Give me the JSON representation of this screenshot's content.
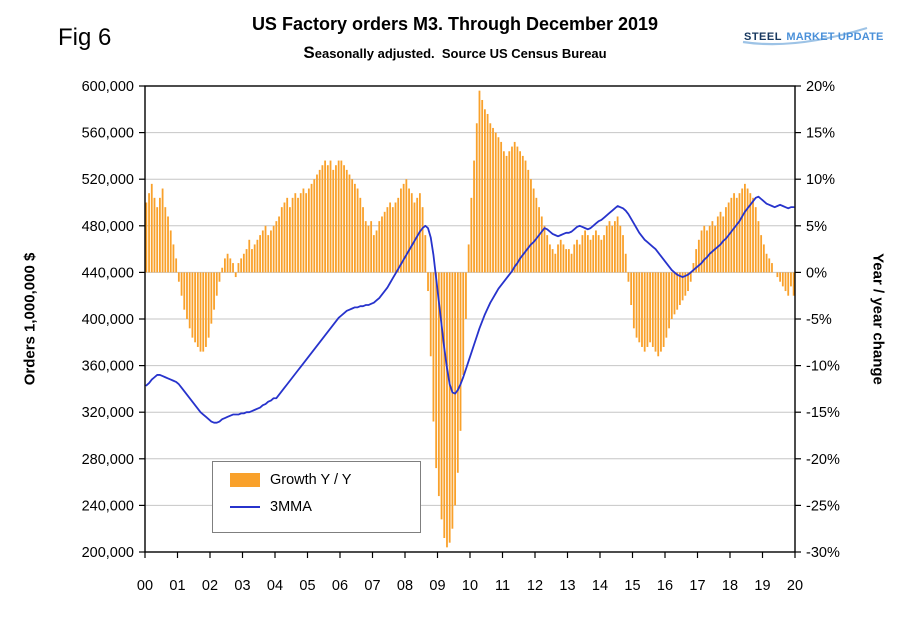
{
  "fig_label": "Fig 6",
  "header": {
    "title": "US Factory orders M3. Through December 2019",
    "subtitle": "Seasonally adjusted.  Source US Census Bureau"
  },
  "logo": {
    "part1": "STEEL",
    "part2": "MARKET UPDATE"
  },
  "axes": {
    "left_title": "Orders 1,000,000 $",
    "right_title": "Year / year change"
  },
  "legend": {
    "items": [
      {
        "label": "Growth Y / Y",
        "swatch": "bar"
      },
      {
        "label": "3MMA",
        "swatch": "line"
      }
    ]
  },
  "colors": {
    "bar": "#F9A12B",
    "line": "#2733CC",
    "grid": "#C6C6C6",
    "axis": "#000000",
    "logo_dark_blue": "#17375E",
    "logo_light_blue": "#4A90D9"
  },
  "chart_data": {
    "type": "bar",
    "combo": "monthly bars (right axis, % y/y) + line (left axis, orders $) over Jan 2000 - Dec 2019",
    "title": "US Factory orders M3. Through December 2019",
    "subtitle": "Seasonally adjusted. Source US Census Bureau",
    "grid": true,
    "legend_position": "inside lower-left",
    "x_unit": "months, Jan 2000 through Dec 2019, year tick labels at each January",
    "x_tick_labels": [
      "00",
      "01",
      "02",
      "03",
      "04",
      "05",
      "06",
      "07",
      "08",
      "09",
      "10",
      "11",
      "12",
      "13",
      "14",
      "15",
      "16",
      "17",
      "18",
      "19",
      "20"
    ],
    "left_axis": {
      "title": "Orders 1,000,000 $",
      "min": 200000,
      "max": 600000,
      "tick_step": 40000,
      "tick_labels": [
        "600,000",
        "560,000",
        "520,000",
        "480,000",
        "440,000",
        "400,000",
        "360,000",
        "320,000",
        "280,000",
        "240,000",
        "200,000"
      ]
    },
    "right_axis": {
      "title": "Year / year change",
      "unit": "%",
      "min": -30,
      "max": 20,
      "tick_step": 5,
      "tick_labels": [
        "20%",
        "15%",
        "10%",
        "5%",
        "0%",
        "-5%",
        "-10%",
        "-15%",
        "-20%",
        "-25%",
        "-30%"
      ]
    },
    "series": [
      {
        "name": "Growth Y / Y",
        "type": "bar",
        "axis": "right",
        "unit": "% year/year",
        "values": [
          7.5,
          8.5,
          9.5,
          8,
          7,
          8,
          9,
          7,
          6,
          4.5,
          3,
          1.5,
          -1,
          -2.5,
          -4,
          -5,
          -6,
          -7,
          -7.5,
          -8,
          -8.5,
          -8.5,
          -8,
          -7,
          -5.5,
          -4,
          -2.5,
          -1,
          0.5,
          1.5,
          2,
          1.5,
          1,
          -0.5,
          1,
          1.5,
          2,
          2.5,
          3.5,
          2.5,
          3,
          3.5,
          4,
          4.5,
          5,
          4,
          4.5,
          5,
          5.5,
          6,
          7,
          7.5,
          8,
          7,
          8,
          8.5,
          8,
          8.5,
          9,
          8.5,
          9,
          9.5,
          10,
          10.5,
          11,
          11.5,
          12,
          11.5,
          12,
          11,
          11.5,
          12,
          12,
          11.5,
          11,
          10.5,
          10,
          9.5,
          9,
          8,
          7,
          5.5,
          5,
          5.5,
          4,
          4.5,
          5.5,
          6,
          6.5,
          7,
          7.5,
          7,
          7.5,
          8,
          9,
          9.5,
          10,
          9,
          8.5,
          7.5,
          8,
          8.5,
          7,
          4,
          -2,
          -9,
          -16,
          -21,
          -24,
          -26.5,
          -28.5,
          -29.5,
          -29,
          -27.5,
          -25,
          -21.5,
          -17,
          -11,
          -5,
          3,
          8,
          12,
          16,
          19.5,
          18.5,
          17.5,
          17,
          16,
          15.5,
          15,
          14.5,
          14,
          13,
          12.5,
          13,
          13.5,
          14,
          13.5,
          13,
          12.5,
          12,
          11,
          10,
          9,
          8,
          7,
          6,
          5,
          4,
          3,
          2.5,
          2,
          3,
          3.5,
          3,
          2.5,
          2.5,
          2,
          3,
          3.5,
          3,
          4,
          4.5,
          4,
          3.5,
          4,
          4.5,
          4,
          3.5,
          4,
          5,
          5.5,
          5,
          5.5,
          6,
          5,
          4,
          2,
          -1,
          -3.5,
          -6,
          -7,
          -7.5,
          -8,
          -8.5,
          -8,
          -7.5,
          -8,
          -8.5,
          -9,
          -8.5,
          -8,
          -7,
          -6,
          -5,
          -4.5,
          -4,
          -3.5,
          -3,
          -2.5,
          -2,
          -1,
          1,
          2.5,
          3.5,
          4.5,
          5,
          4.5,
          5,
          5.5,
          5,
          6,
          6.5,
          6,
          7,
          7.5,
          8,
          8.5,
          8,
          8.5,
          9,
          9.5,
          9,
          8.5,
          8,
          7,
          5.5,
          4,
          3,
          2,
          1.5,
          1,
          0,
          -0.5,
          -1,
          -1.5,
          -2,
          -2.5,
          -1.5,
          -2.5
        ]
      },
      {
        "name": "3MMA",
        "type": "line",
        "axis": "left",
        "unit": "1,000,000 $",
        "values": [
          343000,
          345000,
          348000,
          350000,
          352000,
          352000,
          351000,
          350000,
          349000,
          348000,
          347000,
          346000,
          344000,
          341000,
          338000,
          335000,
          332000,
          329000,
          326000,
          323000,
          320000,
          318000,
          316000,
          314000,
          312000,
          311000,
          311000,
          312000,
          314000,
          315000,
          316000,
          317000,
          318000,
          318000,
          318000,
          319000,
          319000,
          320000,
          320000,
          321000,
          322000,
          323000,
          324000,
          326000,
          327000,
          329000,
          330000,
          332000,
          332000,
          335000,
          338000,
          341000,
          344000,
          347000,
          350000,
          353000,
          356000,
          359000,
          362000,
          365000,
          368000,
          371000,
          374000,
          377000,
          380000,
          383000,
          386000,
          389000,
          392000,
          395000,
          398000,
          401000,
          403000,
          405000,
          407000,
          408000,
          409000,
          410000,
          410000,
          411000,
          411000,
          412000,
          412000,
          413000,
          414000,
          416000,
          418000,
          421000,
          424000,
          427000,
          431000,
          435000,
          439000,
          443000,
          447000,
          451000,
          455000,
          459000,
          463000,
          467000,
          471000,
          475000,
          478000,
          480000,
          478000,
          470000,
          455000,
          435000,
          415000,
          395000,
          375000,
          358000,
          344000,
          337000,
          336000,
          339000,
          344000,
          350000,
          357000,
          364000,
          371000,
          378000,
          385000,
          392000,
          398000,
          404000,
          409000,
          414000,
          418000,
          422000,
          426000,
          429000,
          432000,
          435000,
          438000,
          441000,
          445000,
          448000,
          452000,
          455000,
          458000,
          461000,
          464000,
          466000,
          469000,
          472000,
          475000,
          478000,
          477000,
          475000,
          473000,
          472000,
          471000,
          472000,
          473000,
          474000,
          474000,
          475000,
          477000,
          479000,
          480000,
          479000,
          478000,
          477000,
          478000,
          480000,
          482000,
          484000,
          485000,
          487000,
          489000,
          491000,
          493000,
          495000,
          497000,
          496000,
          495000,
          493000,
          490000,
          486000,
          482000,
          478000,
          474000,
          471000,
          468000,
          466000,
          464000,
          462000,
          460000,
          457000,
          454000,
          451000,
          448000,
          445000,
          442000,
          440000,
          438000,
          437000,
          436000,
          437000,
          438000,
          440000,
          442000,
          444000,
          446000,
          448000,
          451000,
          453000,
          456000,
          458000,
          460000,
          462000,
          464000,
          467000,
          469000,
          472000,
          475000,
          478000,
          481000,
          484000,
          488000,
          492000,
          495000,
          498000,
          501000,
          504000,
          505000,
          503000,
          501000,
          499000,
          498000,
          497000,
          496000,
          497000,
          498000,
          497000,
          496000,
          495000,
          496000,
          496000
        ]
      }
    ]
  }
}
